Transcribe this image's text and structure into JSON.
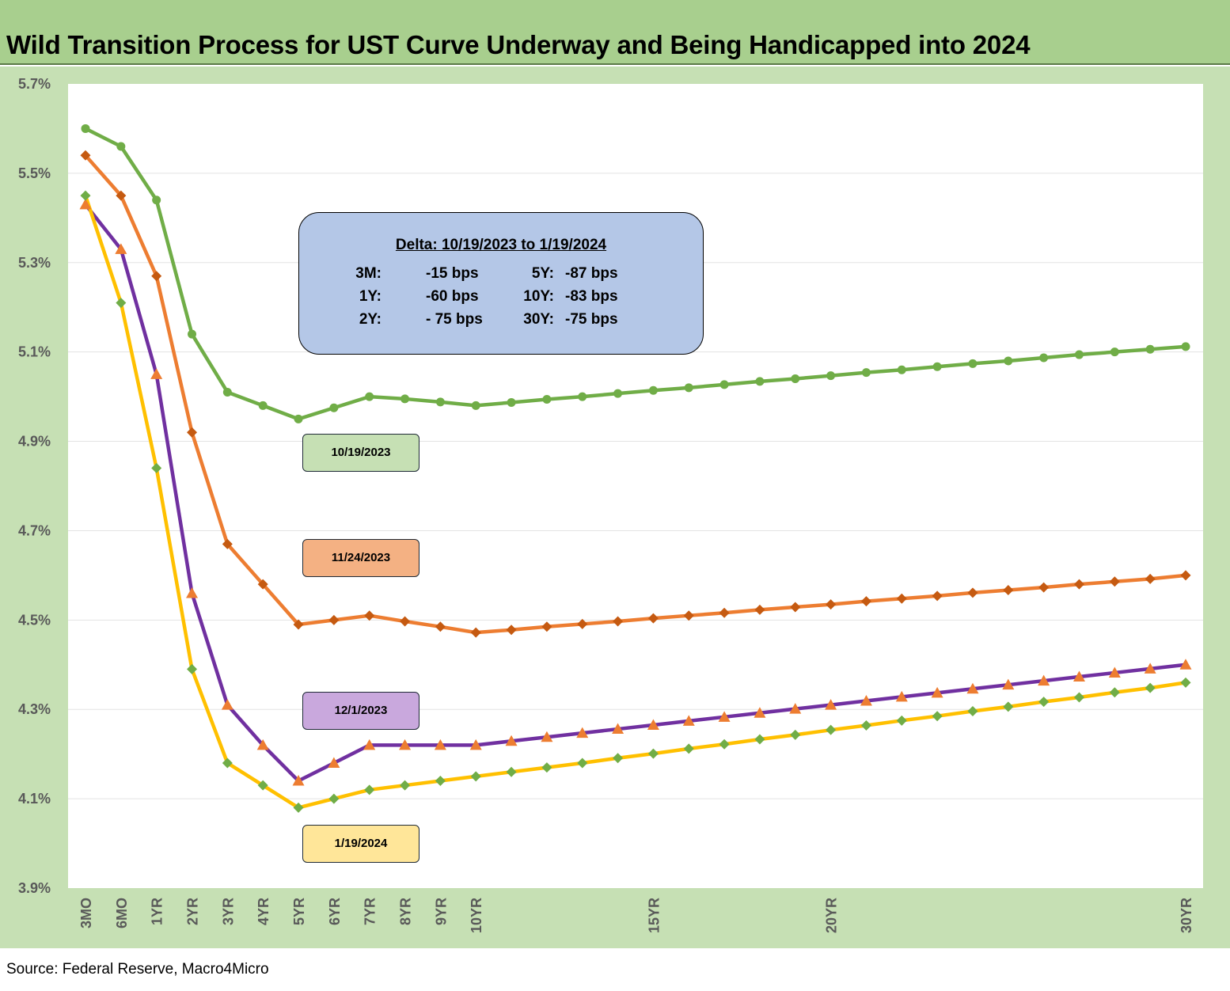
{
  "title": "Wild Transition Process for UST Curve Underway and Being Handicapped into 2024",
  "source": "Source: Federal Reserve, Macro4Micro",
  "colors": {
    "title_bar": "#a8cf8e",
    "chart_bg": "#c6e0b4",
    "plot_bg": "#ffffff",
    "series_10_19_2023": "#70ad47",
    "series_11_24_2023": "#ed7d31",
    "series_12_1_2023": "#7030a0",
    "series_1_19_2024": "#ffc000"
  },
  "delta_box": {
    "title": "Delta: 10/19/2023 to 1/19/2024",
    "rows": [
      {
        "l1": "3M:",
        "v1": "-15 bps",
        "l2": "5Y:",
        "v2": "-87 bps"
      },
      {
        "l1": "1Y:",
        "v1": "-60 bps",
        "l2": "10Y:",
        "v2": "-83 bps"
      },
      {
        "l1": "2Y:",
        "v1": "-  75 bps",
        "l2": "30Y:",
        "v2": "-75 bps"
      }
    ]
  },
  "legend_labels": {
    "s1": "10/19/2023",
    "s2": "11/24/2023",
    "s3": "12/1/2023",
    "s4": "1/19/2024"
  },
  "chart_data": {
    "type": "line",
    "title": "Wild Transition Process for UST Curve Underway and Being Handicapped into 2024",
    "xlabel": "",
    "ylabel": "",
    "ylim": [
      3.9,
      5.7
    ],
    "y_ticks": [
      "3.9%",
      "4.1%",
      "4.3%",
      "4.5%",
      "4.7%",
      "4.9%",
      "5.1%",
      "5.3%",
      "5.5%",
      "5.7%"
    ],
    "y_tick_values": [
      3.9,
      4.1,
      4.3,
      4.5,
      4.7,
      4.9,
      5.1,
      5.3,
      5.5,
      5.7
    ],
    "grid": "horizontal",
    "x_tick_labels": [
      {
        "index": 0,
        "label": "3MO"
      },
      {
        "index": 1,
        "label": "6MO"
      },
      {
        "index": 2,
        "label": "1YR"
      },
      {
        "index": 3,
        "label": "2YR"
      },
      {
        "index": 4,
        "label": "3YR"
      },
      {
        "index": 5,
        "label": "4YR"
      },
      {
        "index": 6,
        "label": "5YR"
      },
      {
        "index": 7,
        "label": "6YR"
      },
      {
        "index": 8,
        "label": "7YR"
      },
      {
        "index": 9,
        "label": "8YR"
      },
      {
        "index": 10,
        "label": "9YR"
      },
      {
        "index": 11,
        "label": "10YR"
      },
      {
        "index": 16,
        "label": "15YR"
      },
      {
        "index": 21,
        "label": "20YR"
      },
      {
        "index": 31,
        "label": "30YR"
      }
    ],
    "point_count": 32,
    "series": [
      {
        "name": "10/19/2023",
        "color": "#70ad47",
        "marker": "circle",
        "values": [
          5.6,
          5.56,
          5.44,
          5.14,
          5.01,
          4.98,
          4.95,
          4.975,
          5.0,
          4.995,
          4.988,
          4.98,
          4.987,
          4.994,
          5.0,
          5.007,
          5.014,
          5.02,
          5.027,
          5.034,
          5.04,
          5.047,
          5.054,
          5.06,
          5.067,
          5.074,
          5.08,
          5.087,
          5.094,
          5.1,
          5.106,
          5.112
        ]
      },
      {
        "name": "11/24/2023",
        "color": "#ed7d31",
        "marker": "diamond",
        "marker_color": "#c55a11",
        "values": [
          5.54,
          5.45,
          5.27,
          4.92,
          4.67,
          4.58,
          4.49,
          4.5,
          4.51,
          4.497,
          4.485,
          4.472,
          4.478,
          4.485,
          4.491,
          4.497,
          4.504,
          4.51,
          4.516,
          4.523,
          4.529,
          4.535,
          4.542,
          4.548,
          4.554,
          4.561,
          4.567,
          4.573,
          4.58,
          4.586,
          4.592,
          4.6
        ]
      },
      {
        "name": "12/1/2023",
        "color": "#7030a0",
        "marker": "triangle",
        "marker_color": "#ed7d31",
        "values": [
          5.43,
          5.33,
          5.05,
          4.56,
          4.31,
          4.22,
          4.14,
          4.18,
          4.22,
          4.22,
          4.22,
          4.22,
          4.229,
          4.238,
          4.247,
          4.256,
          4.265,
          4.274,
          4.283,
          4.292,
          4.301,
          4.31,
          4.319,
          4.328,
          4.337,
          4.346,
          4.355,
          4.364,
          4.373,
          4.382,
          4.391,
          4.4
        ]
      },
      {
        "name": "1/19/2024",
        "color": "#ffc000",
        "marker": "diamond",
        "marker_color": "#70ad47",
        "values": [
          5.45,
          5.21,
          4.84,
          4.39,
          4.18,
          4.13,
          4.08,
          4.1,
          4.12,
          4.13,
          4.14,
          4.15,
          4.16,
          4.17,
          4.18,
          4.191,
          4.201,
          4.212,
          4.222,
          4.233,
          4.243,
          4.254,
          4.264,
          4.275,
          4.285,
          4.296,
          4.306,
          4.317,
          4.327,
          4.338,
          4.348,
          4.36
        ]
      }
    ]
  }
}
